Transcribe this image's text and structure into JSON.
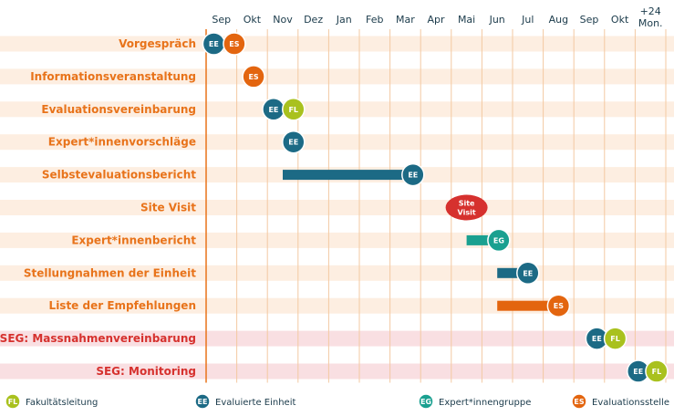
{
  "chart_data": {
    "type": "gantt",
    "months": [
      "Sep",
      "Okt",
      "Nov",
      "Dez",
      "Jan",
      "Feb",
      "Mar",
      "Apr",
      "Mai",
      "Jun",
      "Jul",
      "Aug",
      "Sep",
      "Okt",
      "+24\nMon."
    ],
    "rows": [
      {
        "label": "Vorgespräch",
        "highlight": false,
        "bar": null,
        "markers": [
          {
            "code": "EE",
            "month": 0.25
          },
          {
            "code": "ES",
            "month": 0.92
          }
        ]
      },
      {
        "label": "Informationsveranstaltung",
        "highlight": false,
        "bar": null,
        "markers": [
          {
            "code": "ES",
            "month": 1.55
          }
        ]
      },
      {
        "label": "Evaluationsvereinbarung",
        "highlight": false,
        "bar": null,
        "markers": [
          {
            "code": "EE",
            "month": 2.2
          },
          {
            "code": "FL",
            "month": 2.85
          }
        ]
      },
      {
        "label": "Expert*innenvorschläge",
        "highlight": false,
        "bar": null,
        "markers": [
          {
            "code": "EE",
            "month": 2.85
          }
        ]
      },
      {
        "label": "Selbstevaluationsbericht",
        "highlight": false,
        "bar": {
          "start": 2.5,
          "end": 6.75,
          "color": "EE"
        },
        "markers": [
          {
            "code": "EE",
            "month": 6.75
          }
        ]
      },
      {
        "label": "Site Visit",
        "highlight": false,
        "bar": null,
        "markers": [
          {
            "code": "SV",
            "month": 8.5
          }
        ]
      },
      {
        "label": "Expert*innenbericht",
        "highlight": false,
        "bar": {
          "start": 8.5,
          "end": 9.55,
          "color": "EG"
        },
        "markers": [
          {
            "code": "EG",
            "month": 9.55
          }
        ]
      },
      {
        "label": "Stellungnahmen der Einheit",
        "highlight": false,
        "bar": {
          "start": 9.5,
          "end": 10.5,
          "color": "EE"
        },
        "markers": [
          {
            "code": "EE",
            "month": 10.5
          }
        ]
      },
      {
        "label": "Liste der  Empfehlungen",
        "highlight": false,
        "bar": {
          "start": 9.5,
          "end": 11.5,
          "color": "ES"
        },
        "markers": [
          {
            "code": "ES",
            "month": 11.5
          }
        ]
      },
      {
        "label": "SEG: Massnahmenvereinbarung",
        "highlight": true,
        "bar": null,
        "markers": [
          {
            "code": "EE",
            "month": 12.75
          },
          {
            "code": "FL",
            "month": 13.35
          }
        ]
      },
      {
        "label": "SEG: Monitoring",
        "highlight": true,
        "bar": null,
        "markers": [
          {
            "code": "EE",
            "month": 14.1
          },
          {
            "code": "FL",
            "month": 14.7
          }
        ]
      }
    ],
    "site_visit_text": [
      "Site",
      "Visit"
    ],
    "colors": {
      "FL": "#a9c11e",
      "EE": "#1c6a85",
      "EG": "#1aa090",
      "ES": "#e3650f",
      "SV": "#d6312e",
      "label": "#e8731a",
      "label_highlight": "#d6312e",
      "row_normal": "#fdeee1",
      "row_highlight": "#f9dfe2",
      "gridline": "#f3c9a2",
      "baseline": "#e8731a"
    },
    "legend": [
      {
        "code": "FL",
        "label": "Fakultätsleitung"
      },
      {
        "code": "EE",
        "label": "Evaluierte Einheit"
      },
      {
        "code": "EG",
        "label": "Expert*innengruppe"
      },
      {
        "code": "ES",
        "label": "Evaluationsstelle"
      }
    ]
  }
}
